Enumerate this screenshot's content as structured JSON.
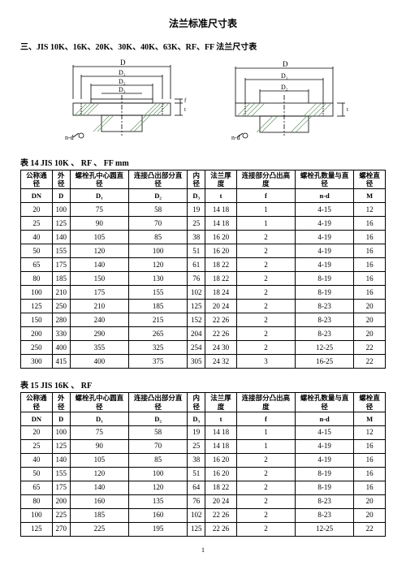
{
  "title": "法兰标准尺寸表",
  "subtitle": "三、JIS 10K、16K、20K、30K、40K、63K、RF、FF 法兰尺寸表",
  "table14": {
    "caption": "表 14 JIS 10K 、 RF 、 FF  mm",
    "headers": [
      "公称通径",
      "外径",
      "螺栓孔中心圆直径",
      "连接凸出部分直径",
      "内径",
      "法兰厚度",
      "连接部分凸出高度",
      "螺栓孔数量与直径",
      "螺栓直径"
    ],
    "subheaders": [
      "DN",
      "D",
      "D₁",
      "D₂",
      "D₃",
      "t",
      "f",
      "n-d",
      "M"
    ],
    "rows": [
      [
        "20",
        "100",
        "75",
        "58",
        "19",
        "14  18",
        "1",
        "4-15",
        "12"
      ],
      [
        "25",
        "125",
        "90",
        "70",
        "25",
        "14  18",
        "1",
        "4-19",
        "16"
      ],
      [
        "40",
        "140",
        "105",
        "85",
        "38",
        "16  20",
        "2",
        "4-19",
        "16"
      ],
      [
        "50",
        "155",
        "120",
        "100",
        "51",
        "16  20",
        "2",
        "4-19",
        "16"
      ],
      [
        "65",
        "175",
        "140",
        "120",
        "61",
        "18  22",
        "2",
        "4-19",
        "16"
      ],
      [
        "80",
        "185",
        "150",
        "130",
        "76",
        "18  22",
        "2",
        "8-19",
        "16"
      ],
      [
        "100",
        "210",
        "175",
        "155",
        "102",
        "18  24",
        "2",
        "8-19",
        "16"
      ],
      [
        "125",
        "250",
        "210",
        "185",
        "125",
        "20  24",
        "2",
        "8-23",
        "20"
      ],
      [
        "150",
        "280",
        "240",
        "215",
        "152",
        "22  26",
        "2",
        "8-23",
        "20"
      ],
      [
        "200",
        "330",
        "290",
        "265",
        "204",
        "22  26",
        "2",
        "8-23",
        "20"
      ],
      [
        "250",
        "400",
        "355",
        "325",
        "254",
        "24  30",
        "2",
        "12-25",
        "22"
      ],
      [
        "300",
        "415",
        "400",
        "375",
        "305",
        "24  32",
        "3",
        "16-25",
        "22"
      ]
    ]
  },
  "table15": {
    "caption": "表 15  JIS  16K 、 RF",
    "headers": [
      "公称通径",
      "外径",
      "螺栓孔中心圆直径",
      "连接凸出部分直径",
      "内径",
      "法兰厚度",
      "连接部分凸出高度",
      "螺栓孔数量与直径",
      "螺栓直径"
    ],
    "subheaders": [
      "DN",
      "D",
      "D₁",
      "D₂",
      "D₃",
      "t",
      "f",
      "n-d",
      "M"
    ],
    "rows": [
      [
        "20",
        "100",
        "75",
        "58",
        "19",
        "14  18",
        "1",
        "4-15",
        "12"
      ],
      [
        "25",
        "125",
        "90",
        "70",
        "25",
        "14  18",
        "1",
        "4-19",
        "16"
      ],
      [
        "40",
        "140",
        "105",
        "85",
        "38",
        "16  20",
        "2",
        "4-19",
        "16"
      ],
      [
        "50",
        "155",
        "120",
        "100",
        "51",
        "16  20",
        "2",
        "8-19",
        "16"
      ],
      [
        "65",
        "175",
        "140",
        "120",
        "64",
        "18  22",
        "2",
        "8-19",
        "16"
      ],
      [
        "80",
        "200",
        "160",
        "135",
        "76",
        "20  24",
        "2",
        "8-23",
        "20"
      ],
      [
        "100",
        "225",
        "185",
        "160",
        "102",
        "22  26",
        "2",
        "8-23",
        "20"
      ],
      [
        "125",
        "270",
        "225",
        "195",
        "125",
        "22  26",
        "2",
        "12-25",
        "22"
      ]
    ]
  },
  "diagram": {
    "hatch_color": "#5a8a5a",
    "line_color": "#000000"
  },
  "pagefoot": "1"
}
